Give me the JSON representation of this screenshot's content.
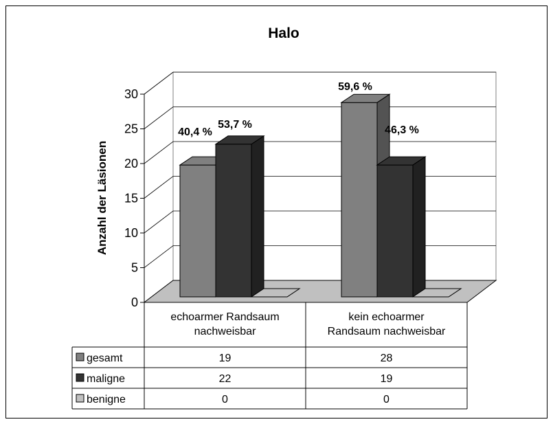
{
  "chart_data": {
    "type": "bar3d",
    "title": "Halo",
    "ylabel": "Anzahl der Läsionen",
    "categories": [
      "echoarmer Randsaum nachweisbar",
      "kein echoarmer Randsaum nachweisbar"
    ],
    "series": [
      {
        "name": "gesamt",
        "color": "#808080",
        "values": [
          19,
          28
        ],
        "labels": [
          "40,4 %",
          "59,6 %"
        ]
      },
      {
        "name": "maligne",
        "color": "#333333",
        "values": [
          22,
          19
        ],
        "labels": [
          "53,7 %",
          "46,3 %"
        ]
      },
      {
        "name": "benigne",
        "color": "#c0c0c0",
        "values": [
          0,
          0
        ]
      }
    ],
    "ylim": [
      0,
      30
    ],
    "yticks": [
      0,
      5,
      10,
      15,
      20,
      25,
      30
    ],
    "grid": true,
    "data_table": true
  }
}
